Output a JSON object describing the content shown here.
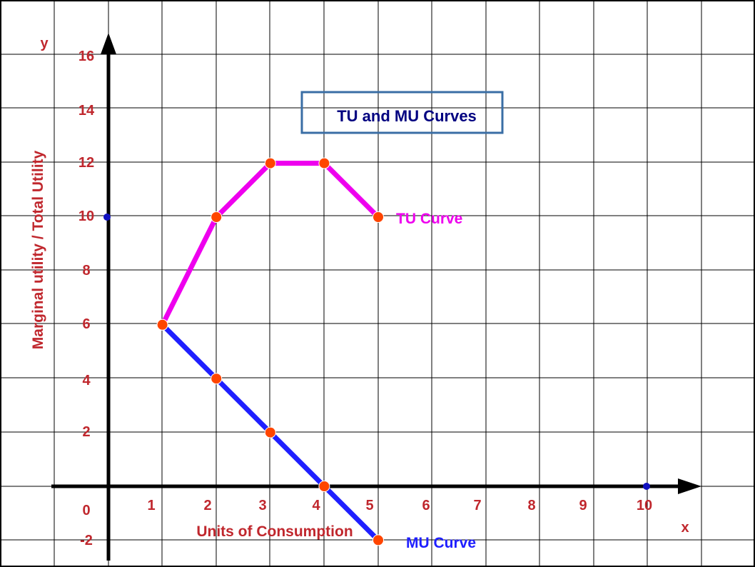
{
  "chart_data": {
    "type": "line",
    "title": "TU and MU Curves",
    "xlabel": "Units of Consumption",
    "ylabel": "Marginal utility / Total Utility",
    "x_axis_letter": "x",
    "y_axis_letter": "y",
    "xlim": [
      -1,
      11
    ],
    "ylim": [
      -2,
      16
    ],
    "x_ticks": [
      "1",
      "2",
      "3",
      "4",
      "5",
      "6",
      "7",
      "8",
      "9",
      "10"
    ],
    "y_ticks": [
      "16",
      "14",
      "12",
      "10",
      "8",
      "6",
      "4",
      "2",
      "0",
      "-2"
    ],
    "grid": true,
    "series": [
      {
        "name": "TU Curve",
        "color": "#ee00ee",
        "x": [
          1,
          2,
          3,
          4,
          5
        ],
        "y": [
          6,
          10,
          12,
          12,
          10
        ]
      },
      {
        "name": "MU Curve",
        "color": "#1f1fff",
        "x": [
          1,
          2,
          3,
          4,
          5
        ],
        "y": [
          6,
          4,
          2,
          0,
          -2
        ]
      }
    ],
    "axis_points": [
      {
        "x": 0,
        "y": 10
      },
      {
        "x": 10,
        "y": 0
      }
    ],
    "colors": {
      "marker": "#ff4500",
      "axis_point": "#1010c0",
      "tick": "#c0272d",
      "title_box": "#3a6ea5",
      "title_text": "#000080"
    }
  }
}
